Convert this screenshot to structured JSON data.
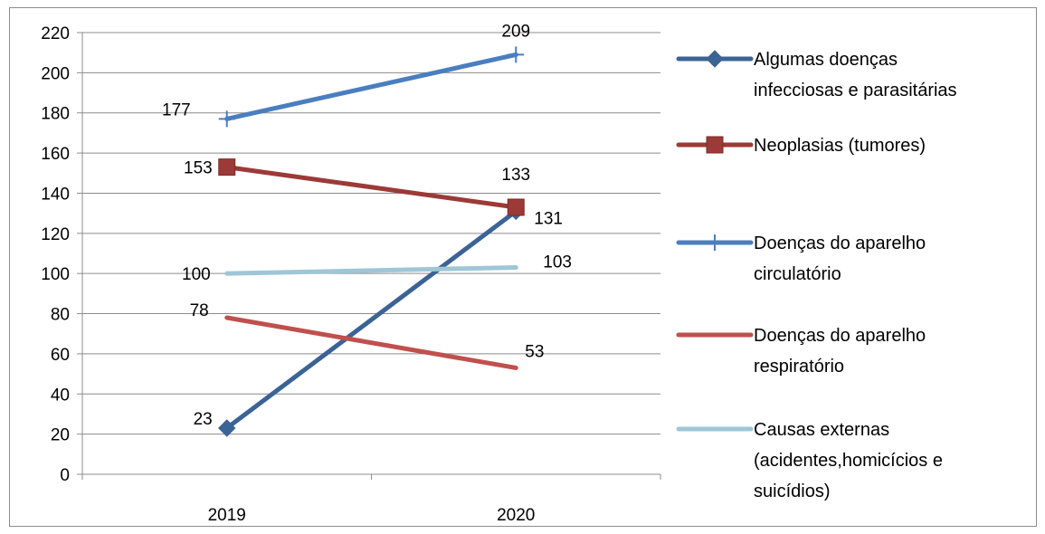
{
  "chart_data": {
    "type": "line",
    "categories": [
      "2019",
      "2020"
    ],
    "ylim": [
      0,
      220
    ],
    "ytick_step": 20,
    "grid": "horizontal",
    "legend_position": "right",
    "series": [
      {
        "name": "Algumas doenças infecciosas e parasitárias",
        "values": [
          23,
          131
        ],
        "color": "#3c6396",
        "marker": "diamond",
        "legend_lines": [
          "Algumas doenças",
          "infecciosas e parasitárias"
        ]
      },
      {
        "name": "Neoplasias (tumores)",
        "values": [
          153,
          133
        ],
        "color": "#9b3a37",
        "marker": "square",
        "legend_lines": [
          "Neoplasias (tumores)"
        ]
      },
      {
        "name": "Doenças do aparelho circulatório",
        "values": [
          177,
          209
        ],
        "color": "#4a7ebf",
        "marker": "plus",
        "legend_lines": [
          "Doenças do aparelho",
          "circulatório"
        ]
      },
      {
        "name": "Doenças do aparelho respiratório",
        "values": [
          78,
          53
        ],
        "color": "#c0504d",
        "marker": "none",
        "legend_lines": [
          "Doenças do aparelho",
          "respiratório"
        ]
      },
      {
        "name": "Causas externas (acidentes,homicícios e suicídios)",
        "values": [
          100,
          103
        ],
        "color": "#9fc6d6",
        "marker": "none",
        "legend_lines": [
          "Causas externas",
          "(acidentes,homicícios e",
          "suicídios)"
        ]
      }
    ]
  }
}
